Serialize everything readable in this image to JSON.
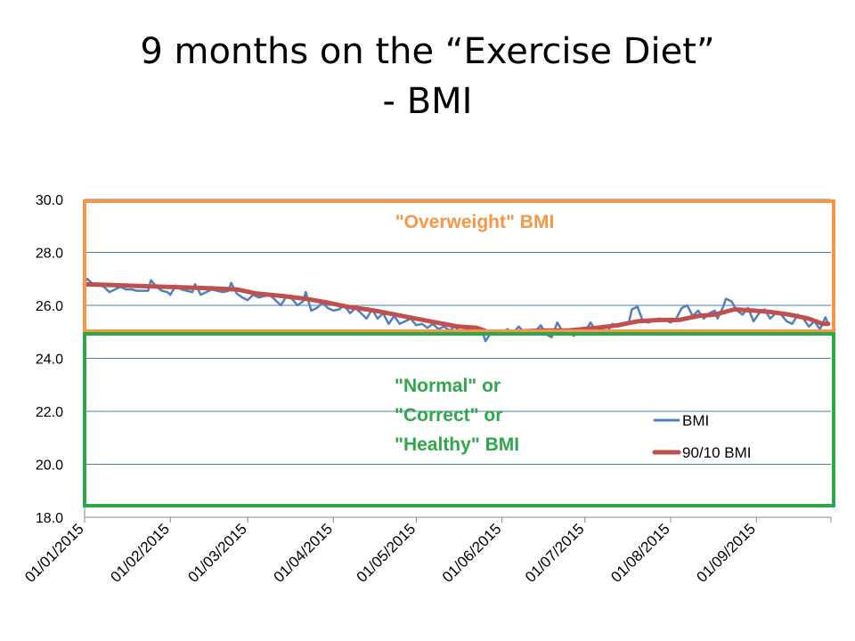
{
  "slide": {
    "title_line1": "9 months on the “Exercise Diet”",
    "title_line2": "- BMI"
  },
  "colors": {
    "bmi": "#4F81BD",
    "avg": "#C0504D",
    "overweight": "#F79646",
    "normal": "#2EA84A",
    "grid": "#4A7EBB"
  },
  "chart_data": {
    "type": "line",
    "ylim": [
      18,
      30
    ],
    "y_ticks": [
      "30.0",
      "28.0",
      "26.0",
      "24.0",
      "22.0",
      "20.0",
      "18.0"
    ],
    "x_range_days": [
      0,
      270
    ],
    "x_ticks": [
      {
        "label": "01/01/2015",
        "day": 0
      },
      {
        "label": "01/02/2015",
        "day": 31
      },
      {
        "label": "01/03/2015",
        "day": 59
      },
      {
        "label": "01/04/2015",
        "day": 90
      },
      {
        "label": "01/05/2015",
        "day": 120
      },
      {
        "label": "01/06/2015",
        "day": 151
      },
      {
        "label": "01/07/2015",
        "day": 181
      },
      {
        "label": "01/08/2015",
        "day": 212
      },
      {
        "label": "01/09/2015",
        "day": 243
      }
    ],
    "zones": [
      {
        "label": "\"Overweight\" BMI",
        "lines": [
          "\"Overweight\" BMI"
        ],
        "range": [
          25,
          30
        ],
        "color_key": "overweight"
      },
      {
        "label": "\"Normal\" or \"Correct\" or \"Healthy\" BMI",
        "lines": [
          "\"Normal\" or",
          "\"Correct\" or",
          "\"Healthy\" BMI"
        ],
        "range": [
          18.5,
          25
        ],
        "color_key": "normal"
      }
    ],
    "legend": [
      {
        "name": "BMI",
        "color_key": "bmi"
      },
      {
        "name": "90/10 BMI",
        "color_key": "avg"
      }
    ],
    "series": [
      {
        "name": "BMI",
        "points": [
          [
            0,
            26.9
          ],
          [
            1,
            27.0
          ],
          [
            2,
            26.9
          ],
          [
            3,
            26.8
          ],
          [
            5,
            26.8
          ],
          [
            7,
            26.7
          ],
          [
            9,
            26.5
          ],
          [
            11,
            26.6
          ],
          [
            13,
            26.7
          ],
          [
            15,
            26.6
          ],
          [
            17,
            26.6
          ],
          [
            19,
            26.55
          ],
          [
            21,
            26.55
          ],
          [
            23,
            26.55
          ],
          [
            24,
            26.95
          ],
          [
            26,
            26.7
          ],
          [
            28,
            26.55
          ],
          [
            30,
            26.5
          ],
          [
            31,
            26.4
          ],
          [
            33,
            26.75
          ],
          [
            35,
            26.6
          ],
          [
            37,
            26.55
          ],
          [
            39,
            26.5
          ],
          [
            40,
            26.8
          ],
          [
            42,
            26.4
          ],
          [
            44,
            26.5
          ],
          [
            46,
            26.6
          ],
          [
            48,
            26.55
          ],
          [
            50,
            26.5
          ],
          [
            52,
            26.55
          ],
          [
            53,
            26.85
          ],
          [
            55,
            26.45
          ],
          [
            57,
            26.3
          ],
          [
            59,
            26.2
          ],
          [
            61,
            26.4
          ],
          [
            63,
            26.3
          ],
          [
            65,
            26.35
          ],
          [
            67,
            26.4
          ],
          [
            69,
            26.2
          ],
          [
            71,
            26.0
          ],
          [
            73,
            26.35
          ],
          [
            75,
            26.25
          ],
          [
            77,
            26.0
          ],
          [
            79,
            26.15
          ],
          [
            80,
            26.5
          ],
          [
            82,
            25.8
          ],
          [
            84,
            25.9
          ],
          [
            86,
            26.1
          ],
          [
            88,
            25.9
          ],
          [
            90,
            25.8
          ],
          [
            92,
            25.85
          ],
          [
            94,
            26.0
          ],
          [
            96,
            25.7
          ],
          [
            98,
            25.9
          ],
          [
            100,
            25.7
          ],
          [
            102,
            25.5
          ],
          [
            104,
            25.85
          ],
          [
            106,
            25.5
          ],
          [
            108,
            25.7
          ],
          [
            110,
            25.3
          ],
          [
            112,
            25.6
          ],
          [
            114,
            25.3
          ],
          [
            116,
            25.4
          ],
          [
            118,
            25.5
          ],
          [
            120,
            25.25
          ],
          [
            122,
            25.3
          ],
          [
            124,
            25.15
          ],
          [
            126,
            25.3
          ],
          [
            128,
            25.1
          ],
          [
            130,
            25.2
          ],
          [
            132,
            25.05
          ],
          [
            134,
            25.2
          ],
          [
            136,
            24.95
          ],
          [
            138,
            25.1
          ],
          [
            140,
            25.0
          ],
          [
            142,
            24.95
          ],
          [
            144,
            25.0
          ],
          [
            145,
            24.65
          ],
          [
            147,
            24.95
          ],
          [
            149,
            24.9
          ],
          [
            151,
            25.0
          ],
          [
            153,
            25.1
          ],
          [
            155,
            24.95
          ],
          [
            157,
            25.2
          ],
          [
            159,
            25.0
          ],
          [
            161,
            25.05
          ],
          [
            163,
            25.0
          ],
          [
            165,
            25.25
          ],
          [
            167,
            24.9
          ],
          [
            169,
            24.8
          ],
          [
            171,
            25.35
          ],
          [
            173,
            25.0
          ],
          [
            175,
            25.0
          ],
          [
            177,
            24.85
          ],
          [
            179,
            25.05
          ],
          [
            181,
            25.0
          ],
          [
            183,
            25.35
          ],
          [
            185,
            25.05
          ],
          [
            187,
            25.1
          ],
          [
            189,
            25.0
          ],
          [
            191,
            25.3
          ],
          [
            193,
            25.2
          ],
          [
            195,
            25.3
          ],
          [
            197,
            25.4
          ],
          [
            198,
            25.85
          ],
          [
            200,
            25.95
          ],
          [
            202,
            25.4
          ],
          [
            204,
            25.35
          ],
          [
            206,
            25.45
          ],
          [
            208,
            25.5
          ],
          [
            210,
            25.45
          ],
          [
            212,
            25.35
          ],
          [
            214,
            25.5
          ],
          [
            216,
            25.9
          ],
          [
            218,
            26.0
          ],
          [
            220,
            25.6
          ],
          [
            222,
            25.8
          ],
          [
            224,
            25.5
          ],
          [
            226,
            25.7
          ],
          [
            228,
            25.8
          ],
          [
            229,
            25.5
          ],
          [
            231,
            25.95
          ],
          [
            232,
            26.25
          ],
          [
            234,
            26.15
          ],
          [
            236,
            25.8
          ],
          [
            238,
            25.65
          ],
          [
            240,
            25.9
          ],
          [
            242,
            25.4
          ],
          [
            244,
            25.7
          ],
          [
            246,
            25.85
          ],
          [
            248,
            25.5
          ],
          [
            250,
            25.7
          ],
          [
            252,
            25.65
          ],
          [
            254,
            25.4
          ],
          [
            256,
            25.3
          ],
          [
            258,
            25.65
          ],
          [
            260,
            25.5
          ],
          [
            262,
            25.2
          ],
          [
            264,
            25.4
          ],
          [
            266,
            25.1
          ],
          [
            268,
            25.55
          ],
          [
            269,
            25.3
          ]
        ]
      },
      {
        "name": "90/10 BMI",
        "points": [
          [
            0,
            26.8
          ],
          [
            15,
            26.75
          ],
          [
            30,
            26.7
          ],
          [
            45,
            26.65
          ],
          [
            55,
            26.6
          ],
          [
            62,
            26.45
          ],
          [
            72,
            26.35
          ],
          [
            80,
            26.25
          ],
          [
            88,
            26.1
          ],
          [
            95,
            25.95
          ],
          [
            105,
            25.8
          ],
          [
            115,
            25.6
          ],
          [
            125,
            25.4
          ],
          [
            135,
            25.2
          ],
          [
            142,
            25.15
          ],
          [
            146,
            25.0
          ],
          [
            155,
            25.0
          ],
          [
            165,
            25.05
          ],
          [
            175,
            25.05
          ],
          [
            185,
            25.15
          ],
          [
            193,
            25.25
          ],
          [
            200,
            25.4
          ],
          [
            208,
            25.45
          ],
          [
            215,
            25.45
          ],
          [
            222,
            25.6
          ],
          [
            228,
            25.65
          ],
          [
            235,
            25.85
          ],
          [
            242,
            25.8
          ],
          [
            248,
            25.75
          ],
          [
            255,
            25.65
          ],
          [
            262,
            25.5
          ],
          [
            267,
            25.3
          ],
          [
            269,
            25.3
          ]
        ]
      }
    ]
  }
}
